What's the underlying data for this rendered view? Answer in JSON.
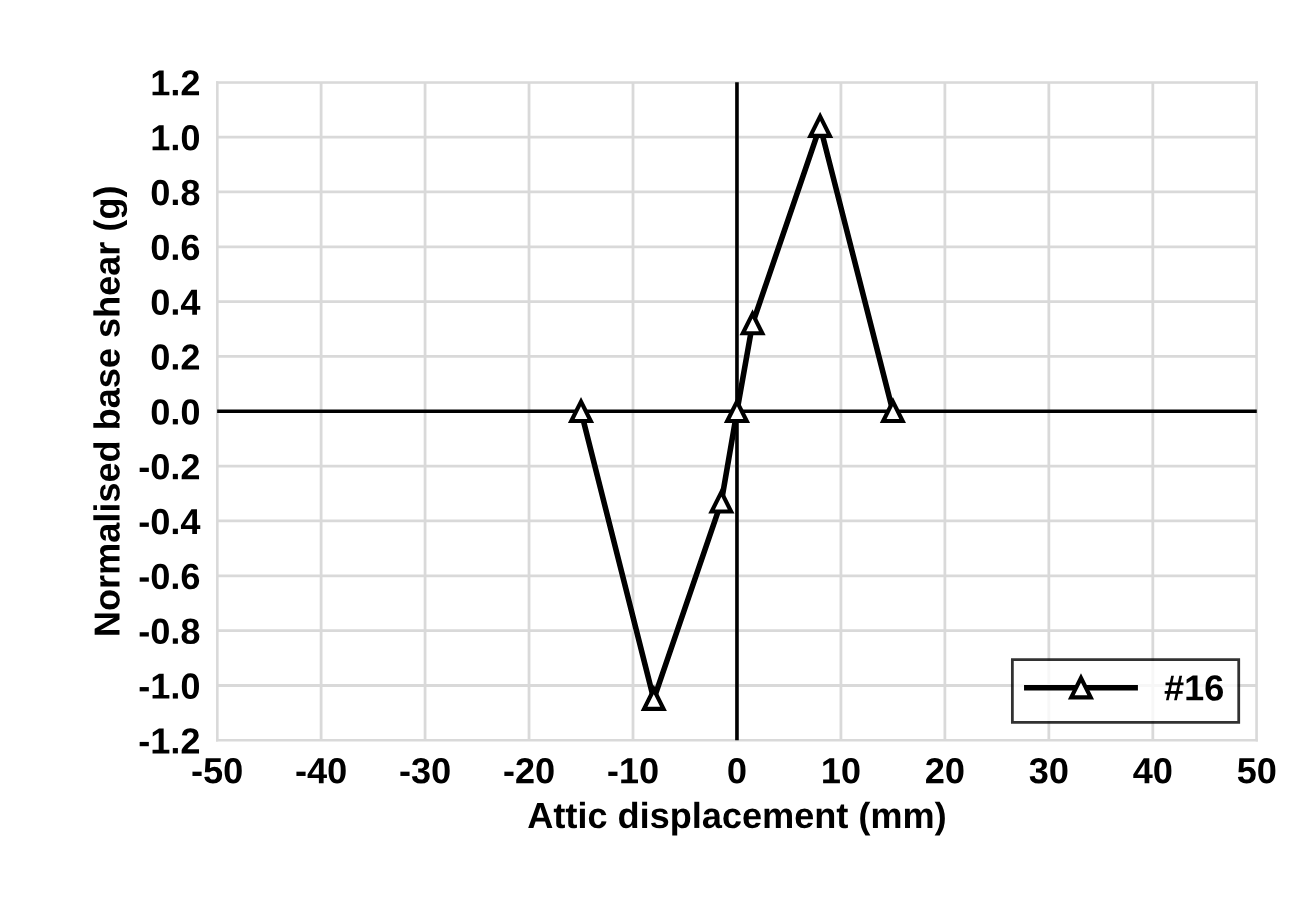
{
  "chart_data": {
    "type": "line",
    "xlabel": "Attic displacement (mm)",
    "ylabel": "Normalised base shear (g)",
    "series": [
      {
        "name": "#16",
        "color": "#000000",
        "x": [
          -15,
          -8,
          -1.5,
          0,
          1.5,
          8,
          15
        ],
        "values": [
          0,
          -1.05,
          -0.33,
          0,
          0.32,
          1.04,
          0
        ]
      }
    ],
    "xlim": [
      -50,
      50
    ],
    "xticks": [
      -50,
      -40,
      -30,
      -20,
      -10,
      0,
      10,
      20,
      30,
      40,
      50
    ],
    "ylim": [
      -1.2,
      1.2
    ],
    "yticks": [
      {
        "value": -1.2,
        "label": "-1.2"
      },
      {
        "value": -1.0,
        "label": "-1.0"
      },
      {
        "value": -0.8,
        "label": "-0.8"
      },
      {
        "value": -0.6,
        "label": "-0.6"
      },
      {
        "value": -0.4,
        "label": "-0.4"
      },
      {
        "value": -0.2,
        "label": "-0.2"
      },
      {
        "value": 0.0,
        "label": "0.0"
      },
      {
        "value": 0.2,
        "label": "0.2"
      },
      {
        "value": 0.4,
        "label": "0.4"
      },
      {
        "value": 0.6,
        "label": "0.6"
      },
      {
        "value": 0.8,
        "label": "0.8"
      },
      {
        "value": 1.0,
        "label": "1.0"
      },
      {
        "value": 1.2,
        "label": "1.2"
      }
    ],
    "grid": true,
    "legend": "bottom right",
    "marker": "triangle",
    "line_style": "solid"
  }
}
